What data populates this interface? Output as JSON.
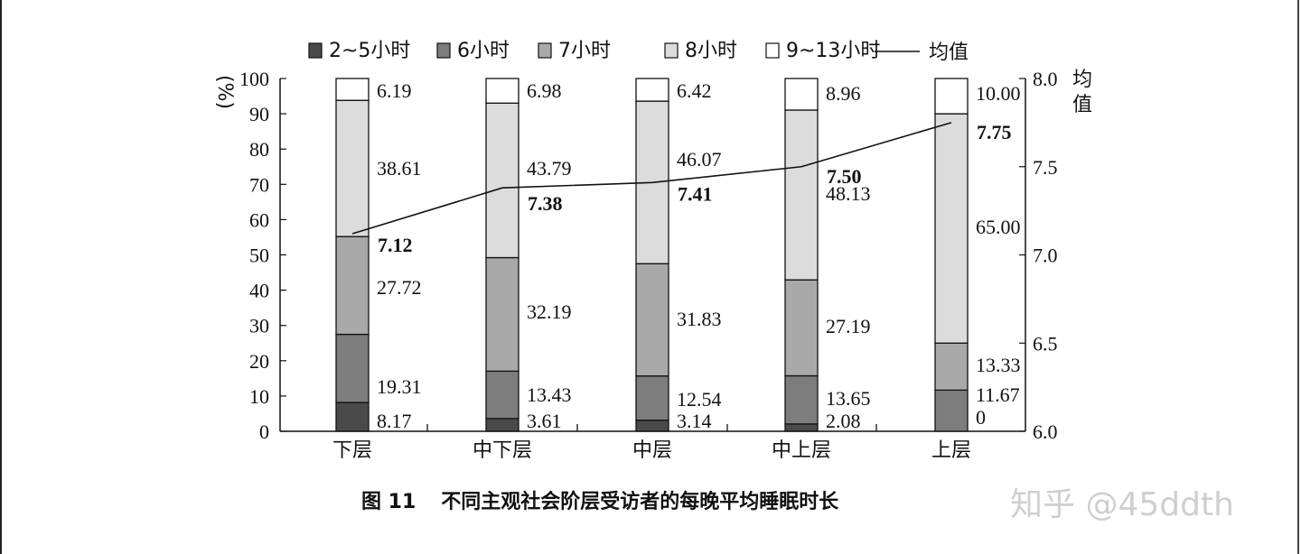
{
  "chart_data": {
    "type": "bar",
    "stacked": true,
    "categories": [
      "下层",
      "中下层",
      "中层",
      "中上层",
      "上层"
    ],
    "series": [
      {
        "name": "2~5小时",
        "color": "#4a4a4a",
        "values": [
          8.17,
          3.61,
          3.14,
          2.08,
          0
        ]
      },
      {
        "name": "6小时",
        "color": "#7d7d7d",
        "values": [
          19.31,
          13.43,
          12.54,
          13.65,
          11.67
        ]
      },
      {
        "name": "7小时",
        "color": "#a9a9a9",
        "values": [
          27.72,
          32.19,
          31.83,
          27.19,
          13.33
        ]
      },
      {
        "name": "8小时",
        "color": "#dcdcdc",
        "values": [
          38.61,
          43.79,
          46.07,
          48.13,
          65.0
        ]
      },
      {
        "name": "9~13小时",
        "color": "#ffffff",
        "values": [
          6.19,
          6.98,
          6.42,
          8.96,
          10.0
        ]
      }
    ],
    "value_labels": [
      [
        "8.17",
        "3.61",
        "3.14",
        "2.08",
        "0"
      ],
      [
        "19.31",
        "13.43",
        "12.54",
        "13.65",
        "11.67"
      ],
      [
        "27.72",
        "32.19",
        "31.83",
        "27.19",
        "13.33"
      ],
      [
        "38.61",
        "43.79",
        "46.07",
        "48.13",
        "65.00"
      ],
      [
        "6.19",
        "6.98",
        "6.42",
        "8.96",
        "10.00"
      ]
    ],
    "line": {
      "name": "均值",
      "values": [
        7.12,
        7.38,
        7.41,
        7.5,
        7.75
      ],
      "labels": [
        "7.12",
        "7.38",
        "7.41",
        "7.50",
        "7.75"
      ]
    },
    "ylabel": "%",
    "ylim": [
      0,
      100
    ],
    "yticks": [
      "0",
      "10",
      "20",
      "30",
      "40",
      "50",
      "60",
      "70",
      "80",
      "90",
      "100"
    ],
    "y2label": "均值",
    "y2lim": [
      6.0,
      8.0
    ],
    "y2ticks": [
      "6.0",
      "6.5",
      "7.0",
      "7.5",
      "8.0"
    ],
    "legend_position": "top",
    "grid": false
  },
  "caption": {
    "number": "图 11",
    "text": "不同主观社会阶层受访者的每晚平均睡眠时长"
  },
  "watermark": "知乎 @45ddth"
}
